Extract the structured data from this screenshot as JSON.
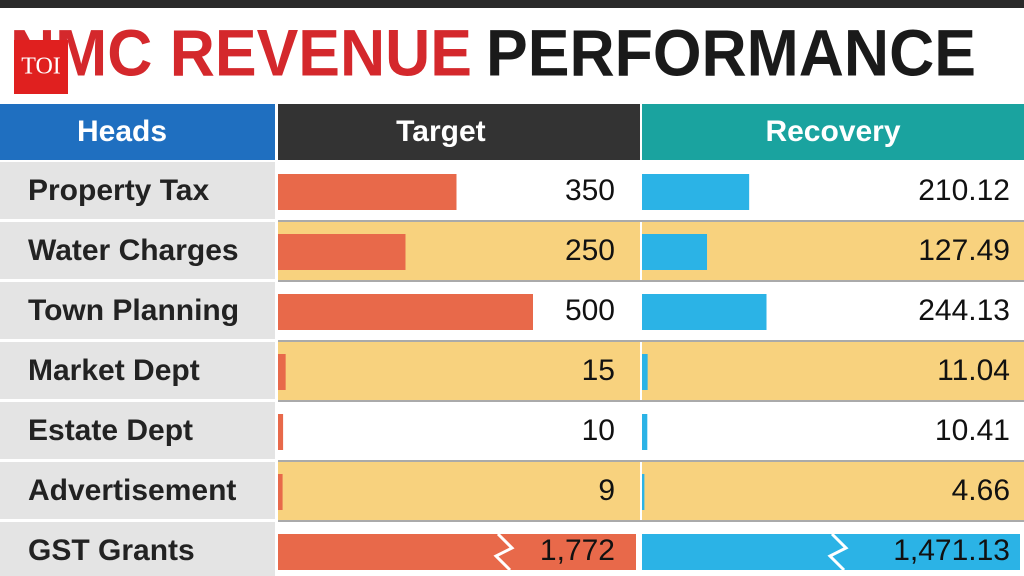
{
  "chart_data": {
    "type": "bar-table",
    "title": [
      "NMC REVENUE",
      "PERFORMANCE"
    ],
    "logo": "TOI",
    "category_header": "Heads",
    "categories": [
      "Property Tax",
      "Water Charges",
      "Town Planning",
      "Market Dept",
      "Estate Dept",
      "Advertisement",
      "GST Grants"
    ],
    "series": [
      {
        "name": "Target",
        "color": "#e8694a",
        "header_color": "#333333",
        "values": [
          350,
          250,
          500,
          15,
          10,
          9,
          1772
        ],
        "value_labels": [
          "350",
          "250",
          "500",
          "15",
          "10",
          "9",
          "1,772"
        ]
      },
      {
        "name": "Recovery",
        "color": "#2bb3e6",
        "header_color": "#1aa39f",
        "values": [
          210.12,
          127.49,
          244.13,
          11.04,
          10.41,
          4.66,
          1471.13
        ],
        "value_labels": [
          "210.12",
          "127.49",
          "244.13",
          "11.04",
          "10.41",
          "4.66",
          "1,471.13"
        ]
      }
    ]
  }
}
